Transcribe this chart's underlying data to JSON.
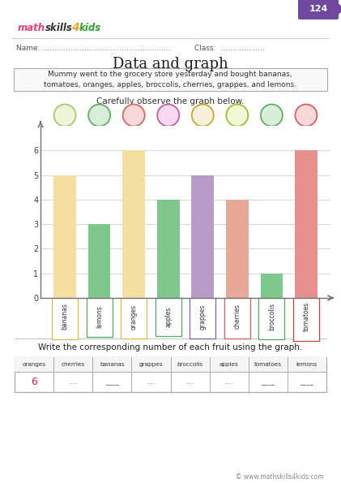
{
  "title": "Data and graph",
  "subtitle": "Carefully observe the graph below.",
  "story_text": "Mummy went to the grocery store yesterday and bought bananas,\ntomatoes, oranges, apples, broccolis, cherries, grappes, and lemons.",
  "categories": [
    "bananas",
    "lemons",
    "oranges",
    "apples",
    "grappes",
    "cherries",
    "broccolis",
    "tomatoes"
  ],
  "values": [
    5,
    3,
    6,
    4,
    5,
    4,
    1,
    6
  ],
  "bar_colors": [
    "#F5DFA0",
    "#7DC88A",
    "#F5DFA0",
    "#7DC88A",
    "#B89CC8",
    "#E8A898",
    "#7DC88A",
    "#E89090"
  ],
  "label_box_colors": [
    "#E8B840",
    "#50A860",
    "#E8B840",
    "#50A860",
    "#8060A8",
    "#D06060",
    "#50A860",
    "#D04040"
  ],
  "ylim": [
    0,
    7
  ],
  "yticks": [
    0,
    1,
    2,
    3,
    4,
    5,
    6
  ],
  "page_num": "124",
  "bottom_question": "Write the corresponding number of each fruit using the graph.",
  "table_headers": [
    "oranges",
    "cherries",
    "bananas",
    "grappes",
    "broccolis",
    "apples",
    "tomatoes",
    "lemons"
  ],
  "table_answer": "6",
  "copyright": "© www.mathskills4kids.com",
  "bg_color": "#FFFFFF",
  "grid_color": "#D0D0D0",
  "icon_fill_colors": [
    "#EEF4D8",
    "#D8EED8",
    "#F8D8D8",
    "#F8D8F0",
    "#F8F0D8",
    "#F0F8D8",
    "#D8EED8",
    "#F8D8D8"
  ],
  "icon_border_colors": [
    "#A8C870",
    "#60B060",
    "#D86868",
    "#C060A0",
    "#C8A830",
    "#A0C030",
    "#60B060",
    "#D86060"
  ]
}
